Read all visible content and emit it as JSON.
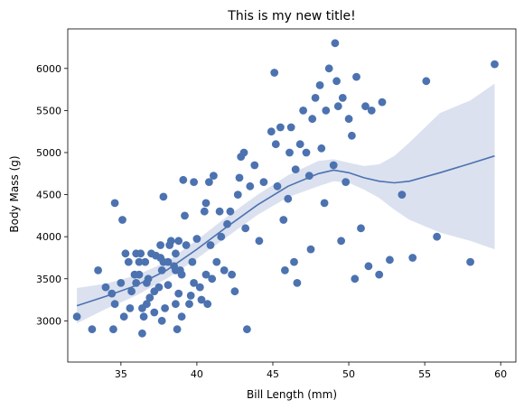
{
  "chart_data": {
    "type": "scatter",
    "title": "This is my new title!",
    "xlabel": "Bill Length (mm)",
    "ylabel": "Body Mass (g)",
    "xlim": [
      31.5,
      61.0
    ],
    "ylim": [
      2510,
      6470
    ],
    "xticks": [
      35,
      40,
      45,
      50,
      55,
      60
    ],
    "yticks": [
      3000,
      3500,
      4000,
      4500,
      5000,
      5500,
      6000
    ],
    "grid": false,
    "point_color": "#4c72b0",
    "band_color": "#dbe1ef",
    "points": [
      [
        32.1,
        3050
      ],
      [
        33.1,
        2900
      ],
      [
        33.5,
        3600
      ],
      [
        34.0,
        3400
      ],
      [
        34.4,
        3325
      ],
      [
        34.5,
        2900
      ],
      [
        34.6,
        3200
      ],
      [
        34.6,
        4400
      ],
      [
        35.0,
        3450
      ],
      [
        35.1,
        4200
      ],
      [
        35.2,
        3050
      ],
      [
        35.3,
        3800
      ],
      [
        35.5,
        3700
      ],
      [
        35.6,
        3150
      ],
      [
        35.7,
        3350
      ],
      [
        35.9,
        3550
      ],
      [
        36.0,
        3800
      ],
      [
        36.0,
        3450
      ],
      [
        36.2,
        3700
      ],
      [
        36.2,
        3550
      ],
      [
        36.3,
        3800
      ],
      [
        36.4,
        3150
      ],
      [
        36.4,
        2850
      ],
      [
        36.5,
        3050
      ],
      [
        36.6,
        3700
      ],
      [
        36.7,
        3450
      ],
      [
        36.7,
        3200
      ],
      [
        36.8,
        3500
      ],
      [
        36.9,
        3275
      ],
      [
        37.0,
        3800
      ],
      [
        37.2,
        3350
      ],
      [
        37.2,
        3100
      ],
      [
        37.3,
        3775
      ],
      [
        37.5,
        3400
      ],
      [
        37.6,
        3900
      ],
      [
        37.6,
        3750
      ],
      [
        37.7,
        3600
      ],
      [
        37.7,
        3000
      ],
      [
        37.8,
        3700
      ],
      [
        37.8,
        4475
      ],
      [
        37.9,
        3150
      ],
      [
        38.1,
        3700
      ],
      [
        38.1,
        3425
      ],
      [
        38.2,
        3900
      ],
      [
        38.3,
        3950
      ],
      [
        38.5,
        3650
      ],
      [
        38.6,
        3800
      ],
      [
        38.6,
        3600
      ],
      [
        38.6,
        3200
      ],
      [
        38.7,
        2900
      ],
      [
        38.8,
        3950
      ],
      [
        38.8,
        3325
      ],
      [
        38.9,
        3600
      ],
      [
        39.0,
        3550
      ],
      [
        39.0,
        3050
      ],
      [
        39.1,
        4675
      ],
      [
        39.2,
        4250
      ],
      [
        39.3,
        3900
      ],
      [
        39.5,
        3200
      ],
      [
        39.6,
        3300
      ],
      [
        39.7,
        3700
      ],
      [
        39.8,
        4650
      ],
      [
        39.8,
        3450
      ],
      [
        40.0,
        3975
      ],
      [
        40.2,
        3400
      ],
      [
        40.3,
        3250
      ],
      [
        40.5,
        4300
      ],
      [
        40.6,
        4400
      ],
      [
        40.6,
        3550
      ],
      [
        40.7,
        3200
      ],
      [
        40.8,
        4650
      ],
      [
        40.9,
        3900
      ],
      [
        41.0,
        3500
      ],
      [
        41.1,
        4725
      ],
      [
        41.3,
        3700
      ],
      [
        41.5,
        4300
      ],
      [
        41.6,
        4000
      ],
      [
        41.8,
        3600
      ],
      [
        42.0,
        4150
      ],
      [
        42.2,
        4300
      ],
      [
        42.3,
        3550
      ],
      [
        42.5,
        3350
      ],
      [
        42.7,
        4500
      ],
      [
        42.8,
        4700
      ],
      [
        42.9,
        4950
      ],
      [
        43.1,
        5000
      ],
      [
        43.2,
        4100
      ],
      [
        43.3,
        2900
      ],
      [
        43.5,
        4600
      ],
      [
        43.8,
        4850
      ],
      [
        44.1,
        3950
      ],
      [
        44.4,
        4650
      ],
      [
        44.9,
        5250
      ],
      [
        45.1,
        5950
      ],
      [
        45.2,
        5100
      ],
      [
        45.3,
        4600
      ],
      [
        45.5,
        5300
      ],
      [
        45.7,
        4200
      ],
      [
        45.8,
        3600
      ],
      [
        46.0,
        4450
      ],
      [
        46.1,
        5000
      ],
      [
        46.2,
        5300
      ],
      [
        46.4,
        3700
      ],
      [
        46.5,
        4800
      ],
      [
        46.6,
        3450
      ],
      [
        46.8,
        5100
      ],
      [
        47.0,
        5500
      ],
      [
        47.2,
        5000
      ],
      [
        47.4,
        4725
      ],
      [
        47.5,
        3850
      ],
      [
        47.6,
        5400
      ],
      [
        47.8,
        5650
      ],
      [
        48.1,
        5800
      ],
      [
        48.2,
        5050
      ],
      [
        48.4,
        4400
      ],
      [
        48.5,
        5500
      ],
      [
        48.7,
        6000
      ],
      [
        49.0,
        4850
      ],
      [
        49.1,
        6300
      ],
      [
        49.2,
        5850
      ],
      [
        49.3,
        5550
      ],
      [
        49.5,
        3950
      ],
      [
        49.6,
        5650
      ],
      [
        49.8,
        4650
      ],
      [
        50.0,
        5400
      ],
      [
        50.2,
        5200
      ],
      [
        50.4,
        3500
      ],
      [
        50.5,
        5900
      ],
      [
        50.8,
        4100
      ],
      [
        51.1,
        5550
      ],
      [
        51.3,
        3650
      ],
      [
        51.5,
        5500
      ],
      [
        52.0,
        3550
      ],
      [
        52.2,
        5600
      ],
      [
        52.7,
        3725
      ],
      [
        53.5,
        4500
      ],
      [
        54.2,
        3750
      ],
      [
        55.1,
        5850
      ],
      [
        55.8,
        4000
      ],
      [
        58.0,
        3700
      ],
      [
        59.6,
        6050
      ]
    ],
    "fit_line": [
      [
        32.1,
        3180
      ],
      [
        34.0,
        3290
      ],
      [
        36.0,
        3420
      ],
      [
        38.0,
        3600
      ],
      [
        40.0,
        3850
      ],
      [
        42.0,
        4120
      ],
      [
        44.0,
        4380
      ],
      [
        46.0,
        4600
      ],
      [
        48.0,
        4750
      ],
      [
        49.0,
        4790
      ],
      [
        50.0,
        4760
      ],
      [
        51.0,
        4700
      ],
      [
        52.0,
        4660
      ],
      [
        53.0,
        4640
      ],
      [
        54.0,
        4660
      ],
      [
        56.0,
        4760
      ],
      [
        58.0,
        4870
      ],
      [
        59.6,
        4960
      ]
    ],
    "ci_upper": [
      [
        32.1,
        3390
      ],
      [
        34.0,
        3440
      ],
      [
        36.0,
        3540
      ],
      [
        38.0,
        3700
      ],
      [
        40.0,
        3960
      ],
      [
        42.0,
        4240
      ],
      [
        44.0,
        4500
      ],
      [
        46.0,
        4730
      ],
      [
        48.0,
        4900
      ],
      [
        49.0,
        4920
      ],
      [
        50.0,
        4880
      ],
      [
        51.0,
        4840
      ],
      [
        52.0,
        4860
      ],
      [
        53.0,
        4960
      ],
      [
        54.0,
        5120
      ],
      [
        56.0,
        5470
      ],
      [
        58.0,
        5620
      ],
      [
        59.6,
        5820
      ]
    ],
    "ci_lower": [
      [
        32.1,
        2970
      ],
      [
        34.0,
        3140
      ],
      [
        36.0,
        3300
      ],
      [
        38.0,
        3500
      ],
      [
        40.0,
        3740
      ],
      [
        42.0,
        4000
      ],
      [
        44.0,
        4260
      ],
      [
        46.0,
        4470
      ],
      [
        48.0,
        4600
      ],
      [
        49.0,
        4660
      ],
      [
        50.0,
        4640
      ],
      [
        51.0,
        4560
      ],
      [
        52.0,
        4460
      ],
      [
        53.0,
        4320
      ],
      [
        54.0,
        4200
      ],
      [
        56.0,
        4050
      ],
      [
        58.0,
        3950
      ],
      [
        59.6,
        3850
      ]
    ]
  }
}
